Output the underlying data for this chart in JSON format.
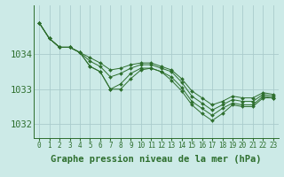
{
  "background_color": "#cceae7",
  "grid_color": "#aacccc",
  "line_color": "#2d6e2d",
  "marker_color": "#2d6e2d",
  "xlabel": "Graphe pression niveau de la mer (hPa)",
  "xlabel_fontsize": 7.5,
  "ylabel_fontsize": 7.5,
  "ylim": [
    1031.6,
    1035.4
  ],
  "xlim": [
    -0.5,
    23.5
  ],
  "yticks": [
    1032,
    1033,
    1034
  ],
  "series": [
    [
      1034.9,
      1034.45,
      1034.2,
      1034.2,
      1034.05,
      1033.65,
      1033.5,
      1033.0,
      1033.0,
      1033.3,
      1033.55,
      1033.6,
      1033.5,
      1033.25,
      1032.95,
      1032.55,
      1032.3,
      1032.1,
      1032.3,
      1032.55,
      1032.5,
      1032.5,
      1032.75,
      1032.75
    ],
    [
      1034.9,
      1034.45,
      1034.2,
      1034.2,
      1034.05,
      1033.65,
      1033.5,
      1033.0,
      1033.15,
      1033.45,
      1033.6,
      1033.6,
      1033.5,
      1033.35,
      1033.05,
      1032.65,
      1032.45,
      1032.25,
      1032.45,
      1032.6,
      1032.55,
      1032.55,
      1032.8,
      1032.75
    ],
    [
      1034.9,
      1034.45,
      1034.2,
      1034.2,
      1034.05,
      1033.8,
      1033.65,
      1033.35,
      1033.45,
      1033.6,
      1033.7,
      1033.7,
      1033.6,
      1033.5,
      1033.2,
      1032.8,
      1032.6,
      1032.4,
      1032.55,
      1032.7,
      1032.65,
      1032.65,
      1032.85,
      1032.8
    ],
    [
      1034.9,
      1034.45,
      1034.2,
      1034.2,
      1034.05,
      1033.9,
      1033.75,
      1033.55,
      1033.6,
      1033.7,
      1033.75,
      1033.75,
      1033.65,
      1033.55,
      1033.3,
      1032.95,
      1032.75,
      1032.55,
      1032.65,
      1032.8,
      1032.75,
      1032.75,
      1032.9,
      1032.85
    ]
  ]
}
